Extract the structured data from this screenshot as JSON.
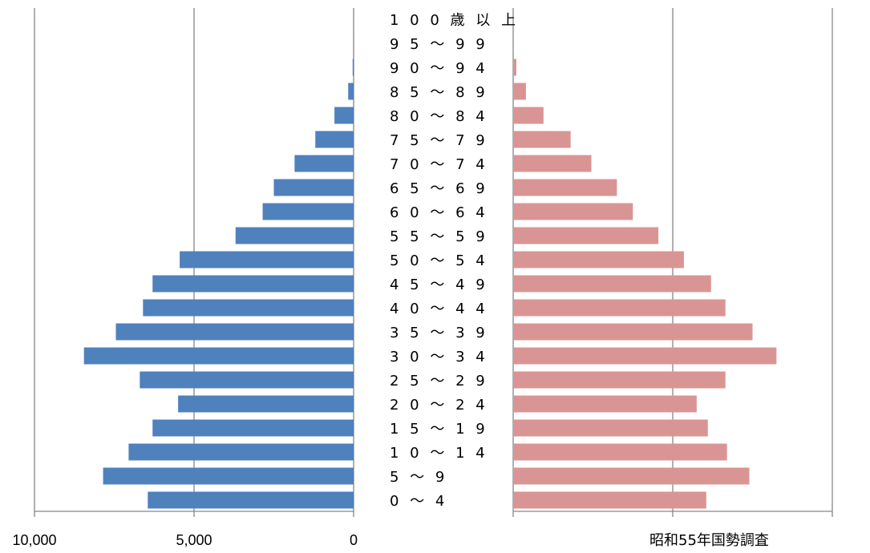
{
  "chart_data": {
    "type": "bar",
    "orientation": "horizontal-population-pyramid",
    "caption": "昭和55年国勢調査",
    "categories": [
      "0 ～ 4",
      "5 ～ 9",
      "1 0 ～ 1 4",
      "1 5 ～ 1 9",
      "2 0 ～ 2 4",
      "2 5 ～ 2 9",
      "3 0 ～ 3 4",
      "3 5 ～ 3 9",
      "4 0 ～ 4 4",
      "4 5 ～ 4 9",
      "5 0 ～ 5 4",
      "5 5 ～ 5 9",
      "6 0 ～ 6 4",
      "6 5 ～ 6 9",
      "7 0 ～ 7 4",
      "7 5 ～ 7 9",
      "8 0 ～ 8 4",
      "8 5 ～ 8 9",
      "9 0 ～ 9 4",
      "9 5 ～ 9 9",
      "1 0 0 歳 以 上"
    ],
    "series": [
      {
        "color": "#4f81bd",
        "side": "left",
        "values": [
          6450,
          7850,
          7050,
          6300,
          5500,
          6700,
          8450,
          7450,
          6600,
          6300,
          5450,
          3700,
          2850,
          2500,
          1850,
          1200,
          600,
          170,
          30,
          5,
          0
        ]
      },
      {
        "color": "#d99594",
        "side": "right",
        "values": [
          6050,
          7400,
          6700,
          6100,
          5750,
          6650,
          8250,
          7500,
          6650,
          6200,
          5350,
          4550,
          3750,
          3250,
          2450,
          1800,
          950,
          400,
          100,
          20,
          0
        ]
      }
    ],
    "x_left_ticks": [
      "10,000",
      "5,000",
      "0"
    ],
    "xlim": [
      0,
      10000
    ],
    "grid": true
  }
}
